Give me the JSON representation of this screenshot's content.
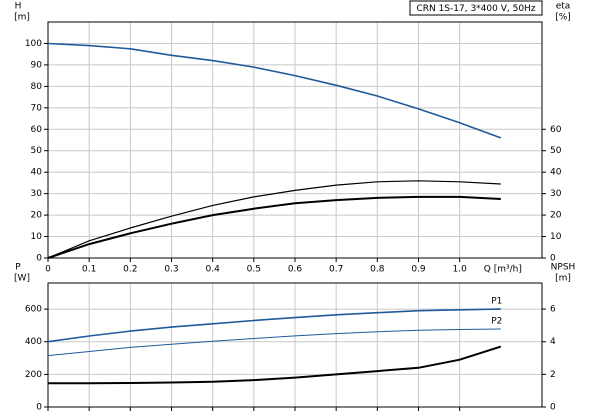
{
  "chart_data": [
    {
      "type": "line",
      "title": "CRN 1S-17, 3*400 V, 50Hz",
      "ylabel": "H",
      "yunit": "[m]",
      "y2label": "eta",
      "y2unit": "[%]",
      "xlabel": "Q [m³/h]",
      "x": [
        0,
        0.1,
        0.2,
        0.3,
        0.4,
        0.5,
        0.6,
        0.7,
        0.8,
        0.9,
        1.0,
        1.1
      ],
      "xlim": [
        0,
        1.2
      ],
      "xticks": [
        0,
        0.1,
        0.2,
        0.3,
        0.4,
        0.5,
        0.6,
        0.7,
        0.8,
        0.9,
        {
          "value": 1,
          "label": "1.0"
        }
      ],
      "ylim": [
        0,
        110
      ],
      "yticks": [
        0,
        10,
        20,
        30,
        40,
        50,
        60,
        70,
        80,
        90,
        100
      ],
      "y2lim": [
        0,
        110
      ],
      "y2ticks": [
        0,
        10,
        20,
        30,
        40,
        50,
        60
      ],
      "grid": true,
      "series": [
        {
          "color": "#1f5a9a",
          "values": [
            100,
            99,
            97.5,
            94.5,
            92,
            89,
            85,
            80.5,
            75.5,
            69.5,
            63,
            56
          ]
        },
        {
          "color": "#000000",
          "axis": "y2",
          "values": [
            0,
            8,
            14,
            19.5,
            24.5,
            28.5,
            31.5,
            34,
            35.5,
            36,
            35.5,
            34.5
          ]
        },
        {
          "color": "#000000",
          "axis": "y2",
          "values": [
            0,
            6.5,
            11.5,
            16,
            20,
            23,
            25.5,
            27,
            28,
            28.5,
            28.5,
            27.5
          ]
        }
      ]
    },
    {
      "type": "line",
      "ylabel": "P",
      "yunit": "[W]",
      "y2label": "NPSH",
      "y2unit": "[m]",
      "x": [
        0,
        0.1,
        0.2,
        0.3,
        0.4,
        0.5,
        0.6,
        0.7,
        0.8,
        0.9,
        1.0,
        1.1
      ],
      "xlim": [
        0,
        1.2
      ],
      "ylim": [
        0,
        760
      ],
      "yticks": [
        0,
        200,
        400,
        600
      ],
      "y2lim": [
        0,
        7.6
      ],
      "y2ticks": [
        0,
        2,
        4,
        6
      ],
      "grid": true,
      "series": [
        {
          "name": "P1",
          "color": "#1f5a9a",
          "values": [
            400,
            435,
            465,
            490,
            510,
            530,
            548,
            565,
            578,
            590,
            596,
            600
          ]
        },
        {
          "name": "P2",
          "color": "#1f5a9a",
          "values": [
            315,
            340,
            365,
            385,
            403,
            420,
            436,
            450,
            461,
            470,
            475,
            478
          ]
        },
        {
          "color": "#000000",
          "axis": "y2",
          "values": [
            1.45,
            1.45,
            1.47,
            1.5,
            1.55,
            1.65,
            1.8,
            2.0,
            2.2,
            2.4,
            2.9,
            3.7
          ]
        }
      ]
    }
  ]
}
